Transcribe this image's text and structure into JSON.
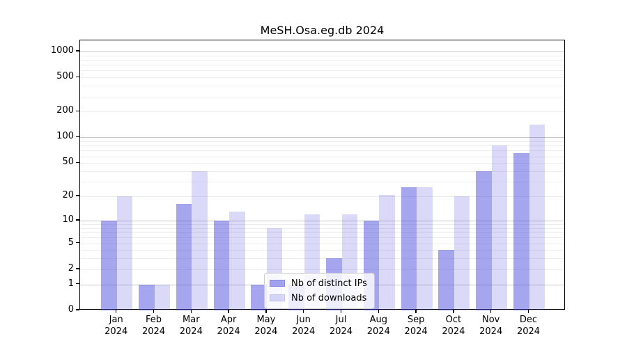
{
  "chart_data": {
    "type": "bar",
    "title": "MeSH.Osa.eg.db 2024",
    "x_ticks": [
      {
        "month": "Jan",
        "year": "2024"
      },
      {
        "month": "Feb",
        "year": "2024"
      },
      {
        "month": "Mar",
        "year": "2024"
      },
      {
        "month": "Apr",
        "year": "2024"
      },
      {
        "month": "May",
        "year": "2024"
      },
      {
        "month": "Jun",
        "year": "2024"
      },
      {
        "month": "Jul",
        "year": "2024"
      },
      {
        "month": "Aug",
        "year": "2024"
      },
      {
        "month": "Sep",
        "year": "2024"
      },
      {
        "month": "Oct",
        "year": "2024"
      },
      {
        "month": "Nov",
        "year": "2024"
      },
      {
        "month": "Dec",
        "year": "2024"
      }
    ],
    "series": [
      {
        "name": "Nb of distinct IPs",
        "color": "rgba(57,57,220,0.45)",
        "values": [
          10,
          1,
          16,
          10,
          1,
          1,
          3,
          10,
          26,
          4,
          40,
          65
        ]
      },
      {
        "name": "Nb of downloads",
        "color": "rgba(57,57,220,0.19)",
        "values": [
          20,
          1,
          40,
          13,
          8,
          12,
          12,
          21,
          26,
          20,
          80,
          140
        ]
      }
    ],
    "y_axis": {
      "scale": "log10(1+x)",
      "tick_values": [
        0,
        1,
        2,
        5,
        10,
        20,
        50,
        100,
        200,
        500,
        1000
      ],
      "major_gridlines": [
        1,
        10,
        100,
        1000
      ],
      "minor_gridlines": [
        2,
        3,
        4,
        5,
        6,
        7,
        8,
        9,
        20,
        30,
        40,
        50,
        60,
        70,
        80,
        90,
        200,
        300,
        400,
        500,
        600,
        700,
        800,
        900
      ],
      "range": [
        0,
        1350
      ]
    },
    "legend": {
      "position": "lower-center"
    },
    "colors": {
      "grid_major": "#c6c6c6",
      "grid_minor": "#ededed",
      "axis": "#000000",
      "background": "#ffffff"
    }
  }
}
